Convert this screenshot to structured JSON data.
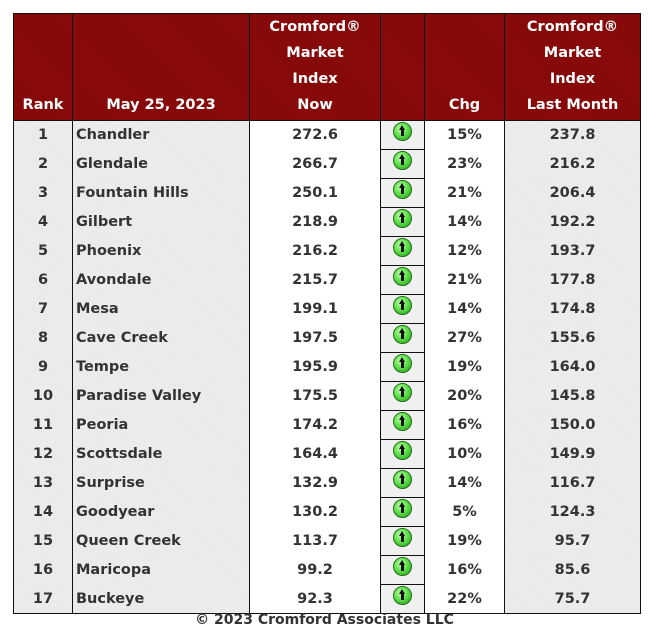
{
  "table": {
    "headers": {
      "rank": "Rank",
      "date": "May 25, 2023",
      "now_line1": "Cromford®",
      "now_line2": "Market",
      "now_line3": "Index",
      "now_line4": "Now",
      "icon": "",
      "chg": "Chg",
      "last_line1": "Cromford®",
      "last_line2": "Market",
      "last_line3": "Index",
      "last_line4": "Last Month"
    },
    "rows": [
      {
        "rank": "1",
        "city": "Chandler",
        "now": "272.6",
        "trend": "up-arrow-icon",
        "chg": "15%",
        "last": "237.8"
      },
      {
        "rank": "2",
        "city": "Glendale",
        "now": "266.7",
        "trend": "up-arrow-icon",
        "chg": "23%",
        "last": "216.2"
      },
      {
        "rank": "3",
        "city": "Fountain Hills",
        "now": "250.1",
        "trend": "up-arrow-icon",
        "chg": "21%",
        "last": "206.4"
      },
      {
        "rank": "4",
        "city": "Gilbert",
        "now": "218.9",
        "trend": "up-arrow-icon",
        "chg": "14%",
        "last": "192.2"
      },
      {
        "rank": "5",
        "city": "Phoenix",
        "now": "216.2",
        "trend": "up-arrow-icon",
        "chg": "12%",
        "last": "193.7"
      },
      {
        "rank": "6",
        "city": "Avondale",
        "now": "215.7",
        "trend": "up-arrow-icon",
        "chg": "21%",
        "last": "177.8"
      },
      {
        "rank": "7",
        "city": "Mesa",
        "now": "199.1",
        "trend": "up-arrow-icon",
        "chg": "14%",
        "last": "174.8"
      },
      {
        "rank": "8",
        "city": "Cave Creek",
        "now": "197.5",
        "trend": "up-arrow-icon",
        "chg": "27%",
        "last": "155.6"
      },
      {
        "rank": "9",
        "city": "Tempe",
        "now": "195.9",
        "trend": "up-arrow-icon",
        "chg": "19%",
        "last": "164.0"
      },
      {
        "rank": "10",
        "city": "Paradise Valley",
        "now": "175.5",
        "trend": "up-arrow-icon",
        "chg": "20%",
        "last": "145.8"
      },
      {
        "rank": "11",
        "city": "Peoria",
        "now": "174.2",
        "trend": "up-arrow-icon",
        "chg": "16%",
        "last": "150.0"
      },
      {
        "rank": "12",
        "city": "Scottsdale",
        "now": "164.4",
        "trend": "up-arrow-icon",
        "chg": "10%",
        "last": "149.9"
      },
      {
        "rank": "13",
        "city": "Surprise",
        "now": "132.9",
        "trend": "up-arrow-icon",
        "chg": "14%",
        "last": "116.7"
      },
      {
        "rank": "14",
        "city": "Goodyear",
        "now": "130.2",
        "trend": "up-arrow-icon",
        "chg": "5%",
        "last": "124.3"
      },
      {
        "rank": "15",
        "city": "Queen Creek",
        "now": "113.7",
        "trend": "up-arrow-icon",
        "chg": "19%",
        "last": "95.7"
      },
      {
        "rank": "16",
        "city": "Maricopa",
        "now": "99.2",
        "trend": "up-arrow-icon",
        "chg": "16%",
        "last": "85.6"
      },
      {
        "rank": "17",
        "city": "Buckeye",
        "now": "92.3",
        "trend": "up-arrow-icon",
        "chg": "22%",
        "last": "75.7"
      }
    ]
  },
  "footer": {
    "copyright": "© 2023 Cromford Associates LLC"
  },
  "colors": {
    "header_bg": "#8b0a0a",
    "header_text": "#ffffff",
    "body_text": "#333333",
    "up_icon": "#4fd63a"
  }
}
